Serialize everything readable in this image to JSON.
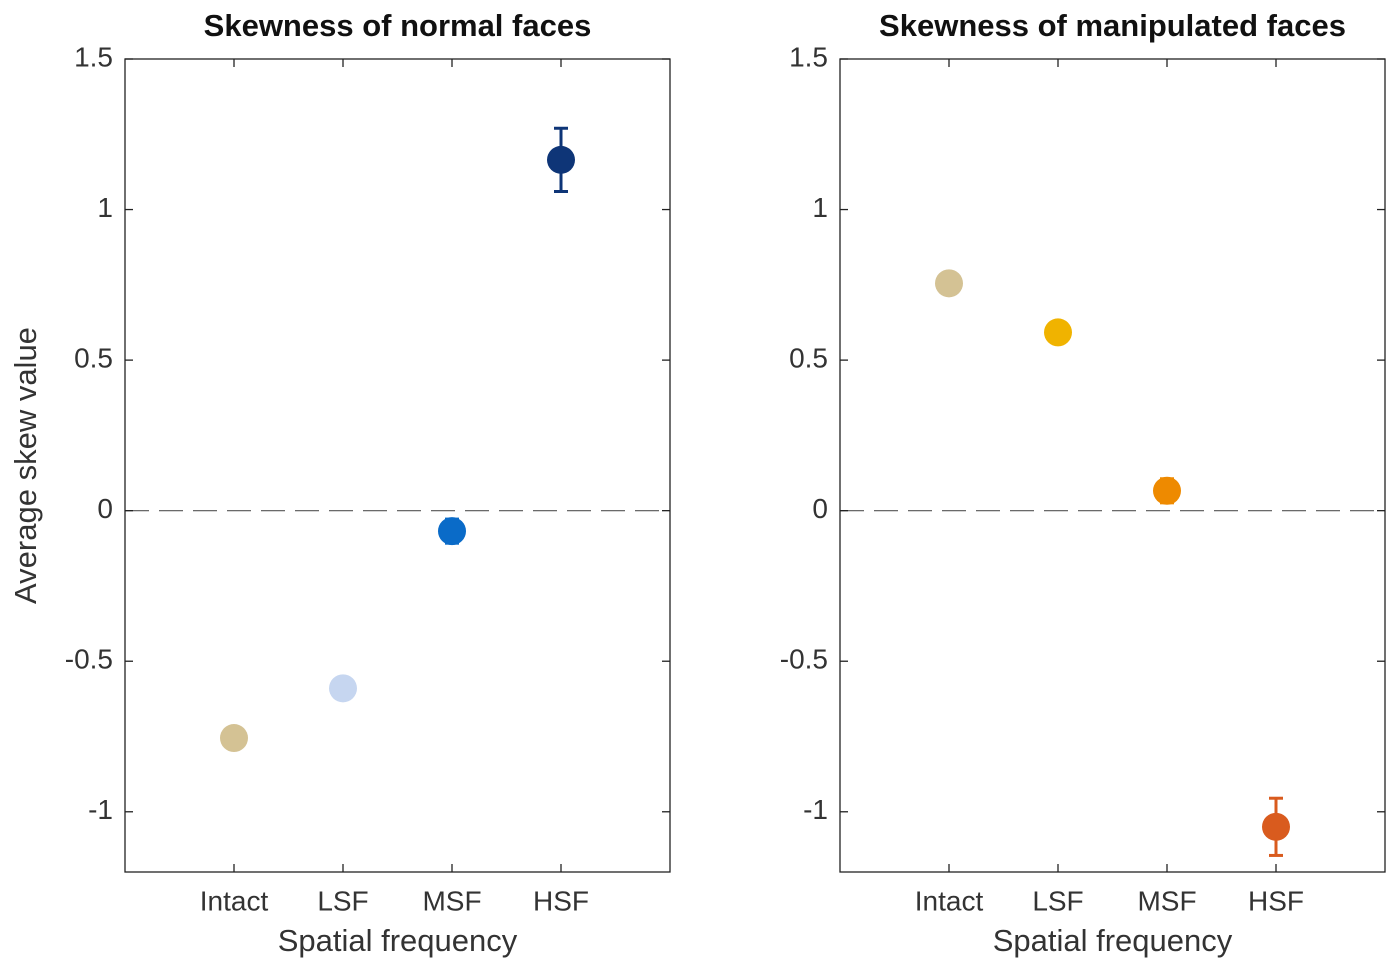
{
  "chart_data": [
    {
      "type": "errorbar",
      "title": "Skewness of normal faces",
      "xlabel": "Spatial frequency",
      "ylabel": "Average skew value",
      "categories": [
        "Intact",
        "LSF",
        "MSF",
        "HSF"
      ],
      "values": [
        -0.755,
        -0.59,
        -0.068,
        1.165
      ],
      "errors": [
        0.01,
        0.01,
        0.04,
        0.105
      ],
      "colors": [
        "#d4c294",
        "#c6d6f0",
        "#0a6bc8",
        "#0e3577"
      ],
      "ylim": [
        -1.2,
        1.5
      ],
      "yticks": [
        -1,
        -0.5,
        0,
        0.5,
        1,
        1.5
      ],
      "hline": 0
    },
    {
      "type": "errorbar",
      "title": "Skewness of manipulated faces",
      "xlabel": "Spatial frequency",
      "categories": [
        "Intact",
        "LSF",
        "MSF",
        "HSF"
      ],
      "values": [
        0.755,
        0.592,
        0.066,
        -1.05
      ],
      "errors": [
        0.01,
        0.01,
        0.04,
        0.095
      ],
      "colors": [
        "#d4c294",
        "#f0b300",
        "#ee8a00",
        "#d95b1e"
      ],
      "ylim": [
        -1.2,
        1.5
      ],
      "yticks": [
        -1,
        -0.5,
        0,
        0.5,
        1,
        1.5
      ],
      "hline": 0
    }
  ]
}
